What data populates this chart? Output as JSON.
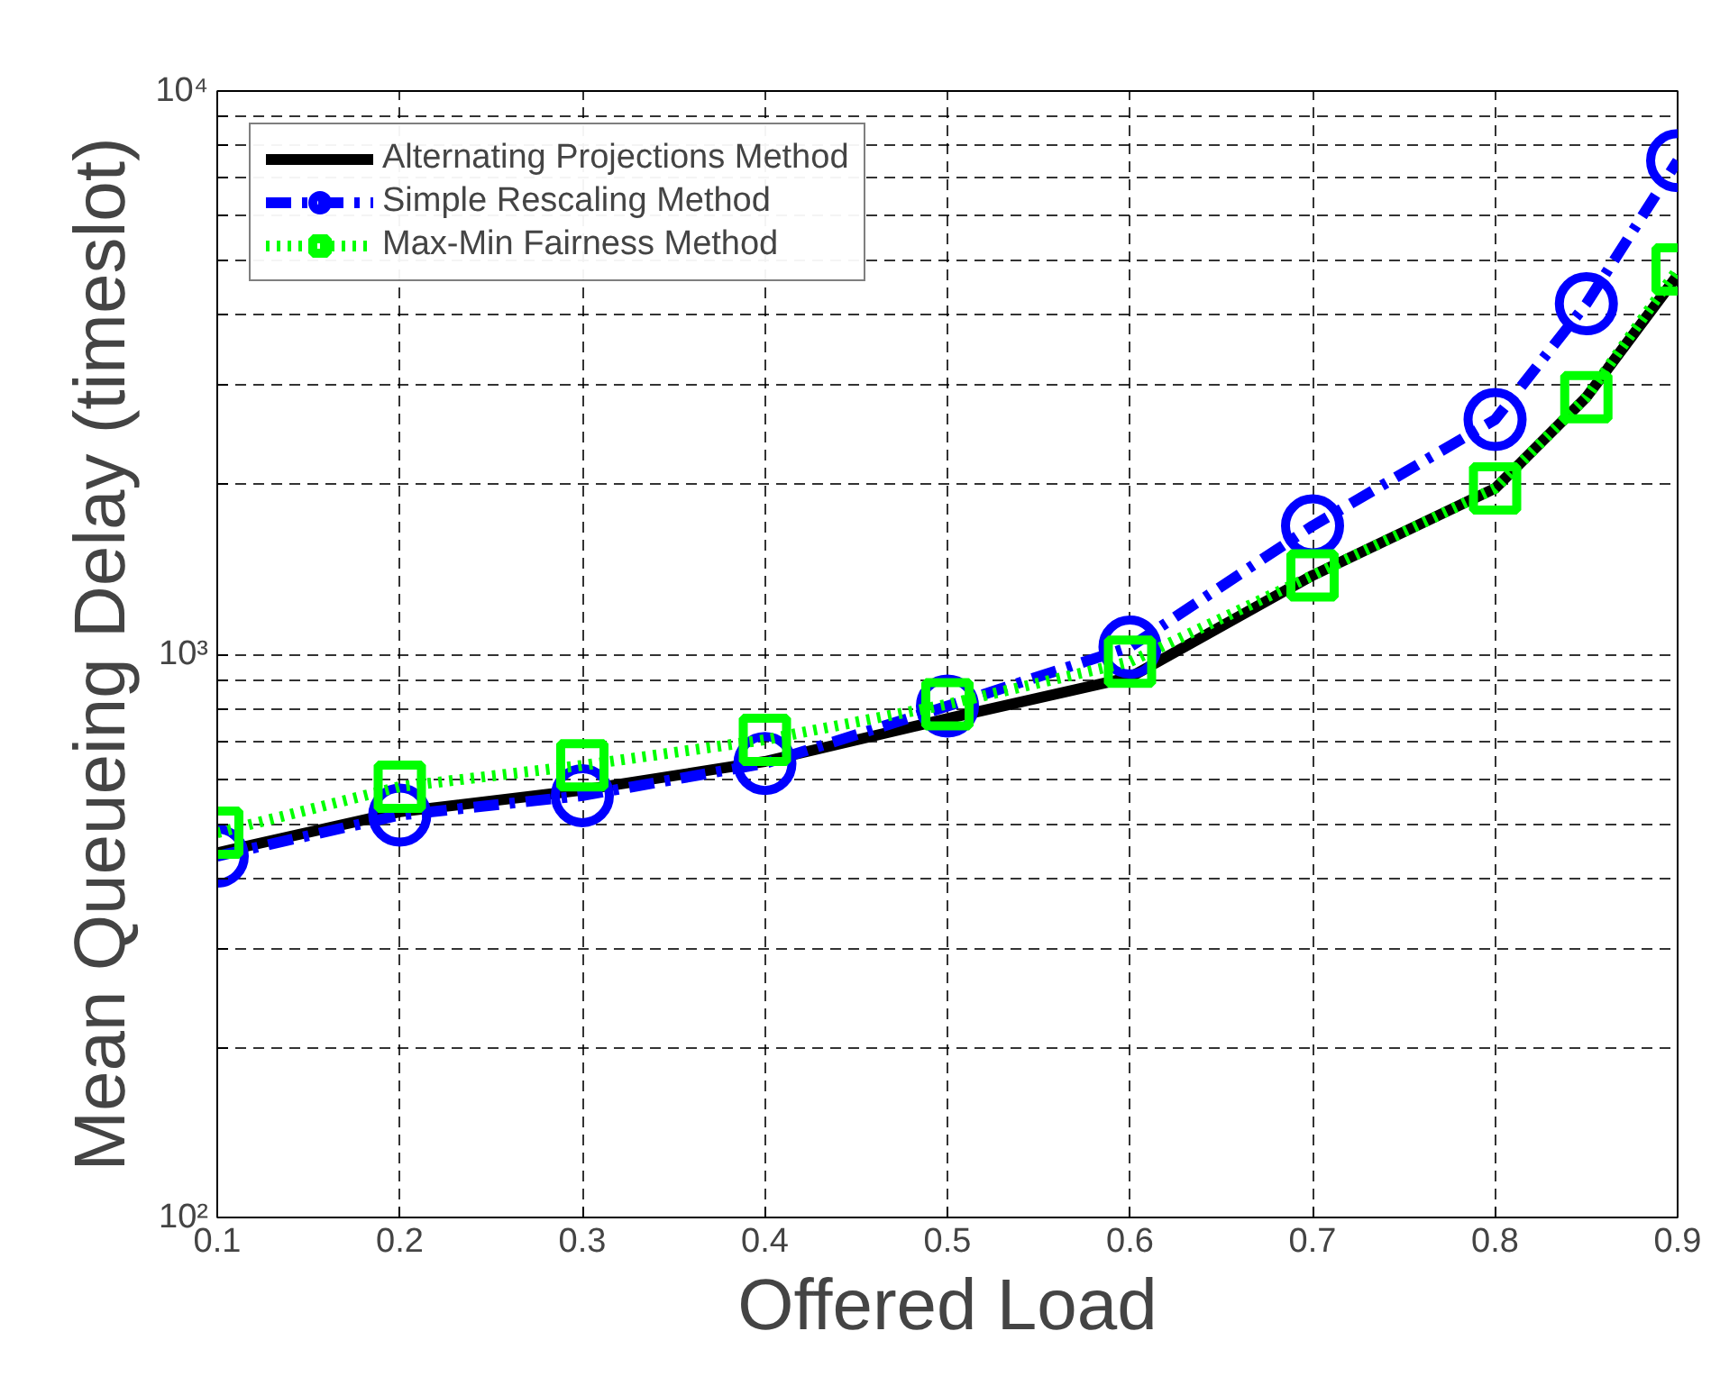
{
  "chart_data": {
    "type": "line",
    "xlabel": "Offered Load",
    "ylabel": "Mean Queueing Delay (timeslot)",
    "log": "y",
    "grid": true,
    "legend": "top left",
    "xlim": [
      0.1,
      0.9
    ],
    "xticks": [
      0.1,
      0.2,
      0.3,
      0.4,
      0.5,
      0.6,
      0.7,
      0.8,
      0.9
    ],
    "ylim": [
      100,
      10000
    ],
    "yticks": [
      {
        "value": 100,
        "label": "10²"
      },
      {
        "value": 200,
        "label": null
      },
      {
        "value": 300,
        "label": null
      },
      {
        "value": 400,
        "label": null
      },
      {
        "value": 500,
        "label": null
      },
      {
        "value": 600,
        "label": null
      },
      {
        "value": 700,
        "label": null
      },
      {
        "value": 800,
        "label": null
      },
      {
        "value": 900,
        "label": null
      },
      {
        "value": 1000,
        "label": "10³"
      },
      {
        "value": 2000,
        "label": null
      },
      {
        "value": 3000,
        "label": null
      },
      {
        "value": 4000,
        "label": null
      },
      {
        "value": 5000,
        "label": null
      },
      {
        "value": 6000,
        "label": null
      },
      {
        "value": 7000,
        "label": null
      },
      {
        "value": 8000,
        "label": null
      },
      {
        "value": 9000,
        "label": null
      },
      {
        "value": 10000,
        "label": "10⁴"
      }
    ],
    "x": [
      0.1,
      0.2,
      0.3,
      0.4,
      0.5,
      0.6,
      0.7,
      0.8,
      0.85,
      0.9
    ],
    "series": [
      {
        "name": "Alternating Projections Method",
        "color": "#000000",
        "marker": "none",
        "line_style": "solid",
        "values": [
          444,
          525,
          574,
          645,
          769,
          910,
          1380,
          1970,
          2860,
          4710
        ]
      },
      {
        "name": "Simple Rescaling Method",
        "color": "#0000ff",
        "marker": "circle",
        "line_style": "dashdot",
        "values": [
          438,
          518,
          561,
          640,
          809,
          1030,
          1690,
          2610,
          4190,
          7520
        ]
      },
      {
        "name": "Max-Min Fairness Method",
        "color": "#00ff00",
        "marker": "square",
        "line_style": "dotted",
        "values": [
          482,
          582,
          635,
          705,
          815,
          970,
          1380,
          1970,
          2860,
          4820
        ]
      }
    ]
  }
}
